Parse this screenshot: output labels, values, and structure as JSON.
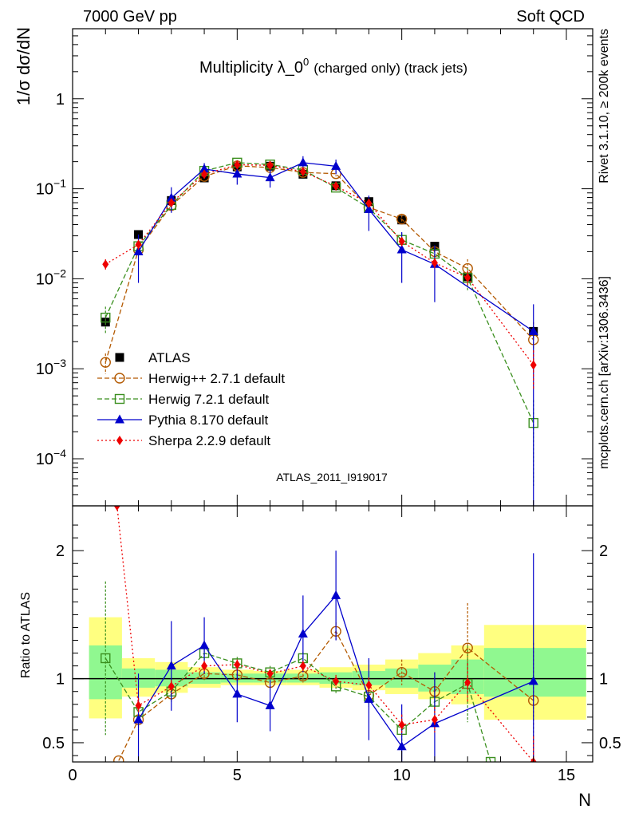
{
  "header": {
    "left": "7000 GeV pp",
    "right": "Soft QCD"
  },
  "side_labels": {
    "rivet": "Rivet 3.1.10, ≥ 200k events",
    "mcplots": "mcplots.cern.ch [arXiv:1306.3436]"
  },
  "watermark": "ATLAS_2011_I919017",
  "chart_data": {
    "type": "line",
    "title": "Multiplicity λ_0",
    "title_sup": "0",
    "title_suffix": "(charged only) (track jets)",
    "xlabel": "N",
    "ylabel": "1/σ dσ/dN",
    "ratio_ylabel": "Ratio to ATLAS",
    "xlim": [
      0,
      15.8
    ],
    "ylim": [
      3e-05,
      6
    ],
    "yscale": "log",
    "ratio_ylim": [
      0.35,
      2.35
    ],
    "x_ticks": [
      0,
      5,
      10,
      15
    ],
    "x_tick_labels": [
      "0",
      "5",
      "10",
      "15"
    ],
    "y_ticks": [
      {
        "value": 1,
        "base": "1",
        "exp": ""
      },
      {
        "value": 0.1,
        "base": "10",
        "exp": "−1"
      },
      {
        "value": 0.01,
        "base": "10",
        "exp": "−2"
      },
      {
        "value": 0.001,
        "base": "10",
        "exp": "−3"
      },
      {
        "value": 0.0001,
        "base": "10",
        "exp": "−4"
      }
    ],
    "ratio_y_ticks": [
      {
        "value": 0.5,
        "label": "0.5"
      },
      {
        "value": 1,
        "label": "1"
      },
      {
        "value": 2,
        "label": "2"
      }
    ],
    "band_bins": [
      {
        "lo": 0.5,
        "hi": 1.5,
        "yellow": [
          0.69,
          1.48
        ],
        "green": [
          0.84,
          1.26
        ]
      },
      {
        "lo": 1.5,
        "hi": 2.5,
        "yellow": [
          0.86,
          1.16
        ],
        "green": [
          0.93,
          1.08
        ]
      },
      {
        "lo": 2.5,
        "hi": 3.5,
        "yellow": [
          0.89,
          1.13
        ],
        "green": [
          0.94,
          1.07
        ]
      },
      {
        "lo": 3.5,
        "hi": 4.5,
        "yellow": [
          0.93,
          1.09
        ],
        "green": [
          0.96,
          1.05
        ]
      },
      {
        "lo": 4.5,
        "hi": 5.5,
        "yellow": [
          0.95,
          1.07
        ],
        "green": [
          0.97,
          1.04
        ]
      },
      {
        "lo": 5.5,
        "hi": 6.5,
        "yellow": [
          0.95,
          1.06
        ],
        "green": [
          0.97,
          1.04
        ]
      },
      {
        "lo": 6.5,
        "hi": 7.5,
        "yellow": [
          0.95,
          1.07
        ],
        "green": [
          0.97,
          1.04
        ]
      },
      {
        "lo": 7.5,
        "hi": 8.5,
        "yellow": [
          0.93,
          1.09
        ],
        "green": [
          0.96,
          1.05
        ]
      },
      {
        "lo": 8.5,
        "hi": 9.5,
        "yellow": [
          0.91,
          1.11
        ],
        "green": [
          0.95,
          1.06
        ]
      },
      {
        "lo": 9.5,
        "hi": 10.5,
        "yellow": [
          0.88,
          1.15
        ],
        "green": [
          0.93,
          1.08
        ]
      },
      {
        "lo": 10.5,
        "hi": 11.5,
        "yellow": [
          0.84,
          1.2
        ],
        "green": [
          0.9,
          1.11
        ]
      },
      {
        "lo": 11.5,
        "hi": 12.5,
        "yellow": [
          0.8,
          1.26
        ],
        "green": [
          0.88,
          1.15
        ]
      },
      {
        "lo": 12.5,
        "hi": 15.6,
        "yellow": [
          0.68,
          1.42
        ],
        "green": [
          0.86,
          1.24
        ]
      }
    ],
    "series": [
      {
        "name": "ATLAS",
        "legend": "ATLAS",
        "color": "#000000",
        "marker": "square_filled",
        "line": "none",
        "x": [
          1,
          2,
          3,
          4,
          5,
          6,
          7,
          8,
          9,
          10,
          11,
          12,
          14
        ],
        "y": [
          0.0033,
          0.031,
          0.074,
          0.132,
          0.175,
          0.178,
          0.145,
          0.108,
          0.072,
          0.045,
          0.023,
          0.0105,
          0.0026
        ],
        "err": [
          0.0003,
          0.002,
          0.004,
          0.005,
          0.006,
          0.006,
          0.005,
          0.004,
          0.003,
          0.002,
          0.0012,
          0.0008,
          0.0004
        ]
      },
      {
        "name": "Herwig++ 2.7.1 default",
        "legend": "Herwig++ 2.7.1 default",
        "color": "#b35900",
        "marker": "circle_open",
        "line": "dashed",
        "x": [
          1,
          2,
          3,
          4,
          5,
          6,
          7,
          8,
          9,
          10,
          11,
          12,
          14
        ],
        "y": [
          0.00118,
          0.021,
          0.065,
          0.137,
          0.18,
          0.172,
          0.152,
          0.147,
          0.062,
          0.046,
          0.02,
          0.013,
          0.0021
        ],
        "err": [
          0.0003,
          0.002,
          0.005,
          0.008,
          0.009,
          0.009,
          0.008,
          0.01,
          0.006,
          0.005,
          0.003,
          0.0035,
          0.0012
        ],
        "ratio_x": [
          1.4,
          2,
          3,
          4,
          5,
          6,
          7,
          8,
          9,
          10,
          11,
          12,
          14
        ],
        "ratio": [
          0.36,
          0.68,
          0.88,
          1.04,
          1.03,
          0.97,
          1.02,
          1.37,
          0.87,
          1.05,
          0.9,
          1.24,
          0.83
        ],
        "ratio_err": [
          0,
          0.08,
          0.06,
          0.05,
          0.05,
          0.04,
          0.05,
          0.07,
          0.08,
          0.1,
          0.15,
          0.35,
          0.45
        ]
      },
      {
        "name": "Herwig 7.2.1 default",
        "legend": "Herwig 7.2.1 default",
        "color": "#3a8f1e",
        "marker": "square_open",
        "line": "dashed",
        "x": [
          1,
          2,
          3,
          4,
          5,
          6,
          7,
          8,
          9,
          10,
          11,
          12,
          14
        ],
        "y": [
          0.0037,
          0.023,
          0.066,
          0.158,
          0.195,
          0.186,
          0.162,
          0.103,
          0.061,
          0.027,
          0.019,
          0.0102,
          0.00025
        ],
        "err": [
          0.0012,
          0.003,
          0.006,
          0.01,
          0.011,
          0.011,
          0.01,
          0.009,
          0.006,
          0.005,
          0.004,
          0.003,
          0.0002
        ],
        "ratio_x": [
          1,
          2,
          3,
          4,
          5,
          6,
          7,
          8,
          9,
          10,
          11,
          12,
          12.7
        ],
        "ratio": [
          1.16,
          0.74,
          0.9,
          1.2,
          1.12,
          1.05,
          1.16,
          0.94,
          0.86,
          0.6,
          0.82,
          0.96,
          0.35
        ],
        "ratio_err": [
          0.6,
          0.1,
          0.08,
          0.06,
          0.05,
          0.05,
          0.05,
          0.06,
          0.08,
          0.12,
          0.18,
          0.3,
          0
        ]
      },
      {
        "name": "Pythia 8.170 default",
        "legend": "Pythia 8.170 default",
        "color": "#0000cc",
        "marker": "triangle_filled",
        "line": "solid",
        "x": [
          2,
          3,
          4,
          5,
          6,
          7,
          8,
          9,
          10,
          11,
          14
        ],
        "y": [
          0.02,
          0.079,
          0.166,
          0.146,
          0.133,
          0.195,
          0.178,
          0.059,
          0.021,
          0.0145,
          0.0026
        ],
        "err": [
          0.011,
          0.025,
          0.027,
          0.035,
          0.03,
          0.035,
          0.033,
          0.025,
          0.012,
          0.009,
          0.0026
        ],
        "ratio_x": [
          2,
          3,
          4,
          5,
          6,
          7,
          8,
          9,
          10,
          11,
          14
        ],
        "ratio": [
          0.68,
          1.1,
          1.26,
          0.88,
          0.79,
          1.35,
          1.65,
          0.84,
          0.47,
          0.65,
          0.98
        ],
        "ratio_err": [
          0.36,
          0.35,
          0.22,
          0.22,
          0.2,
          0.3,
          0.35,
          0.32,
          0.33,
          0.4,
          1.0
        ]
      },
      {
        "name": "Sherpa 2.2.9 default",
        "legend": "Sherpa 2.2.9 default",
        "color": "#ee0000",
        "marker": "diamond_filled",
        "line": "dotted",
        "x": [
          1,
          2,
          3,
          4,
          5,
          6,
          7,
          8,
          9,
          10,
          11,
          12,
          14
        ],
        "y": [
          0.0145,
          0.024,
          0.07,
          0.145,
          0.185,
          0.182,
          0.155,
          0.107,
          0.069,
          0.026,
          0.015,
          0.0103,
          0.0011
        ],
        "err": [
          0.002,
          0.003,
          0.004,
          0.006,
          0.007,
          0.007,
          0.006,
          0.005,
          0.004,
          0.003,
          0.002,
          0.002,
          0.0005
        ],
        "ratio_x": [
          1.35,
          2,
          3,
          4,
          5,
          6,
          7,
          8,
          9,
          10,
          11,
          12,
          14
        ],
        "ratio": [
          2.35,
          0.79,
          0.94,
          1.1,
          1.11,
          1.04,
          1.1,
          0.98,
          0.95,
          0.64,
          0.68,
          0.97,
          0.35
        ],
        "ratio_err": [
          0,
          0.06,
          0.05,
          0.04,
          0.04,
          0.03,
          0.04,
          0.05,
          0.06,
          0.08,
          0.1,
          0.15,
          0.2
        ]
      }
    ]
  }
}
